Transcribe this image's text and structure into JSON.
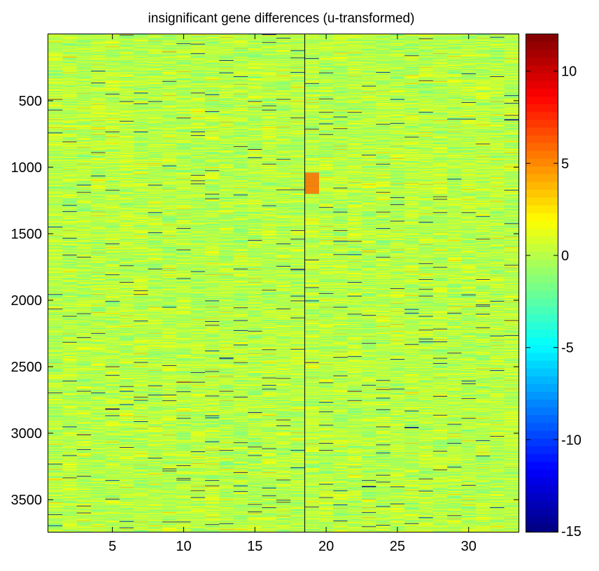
{
  "chart_data": {
    "type": "heatmap",
    "title": "insignificant gene differences (u-transformed)",
    "xlabel": "",
    "ylabel": "",
    "columns": 33,
    "rows": 3741,
    "x_ticks": [
      5,
      10,
      15,
      20,
      25,
      30
    ],
    "y_ticks": [
      500,
      1000,
      1500,
      2000,
      2500,
      3000,
      3500
    ],
    "divider_x": 18.5,
    "colorbar": {
      "colormap": "jet",
      "range": [
        -15,
        12
      ],
      "ticks": [
        10,
        5,
        0,
        -5,
        -10,
        -15
      ]
    },
    "typical_value_range": [
      -2,
      2
    ],
    "outlier_value": -15,
    "orange_patches": [
      {
        "col": 19,
        "row_start": 1040,
        "row_end": 1200,
        "value": 6
      }
    ]
  }
}
